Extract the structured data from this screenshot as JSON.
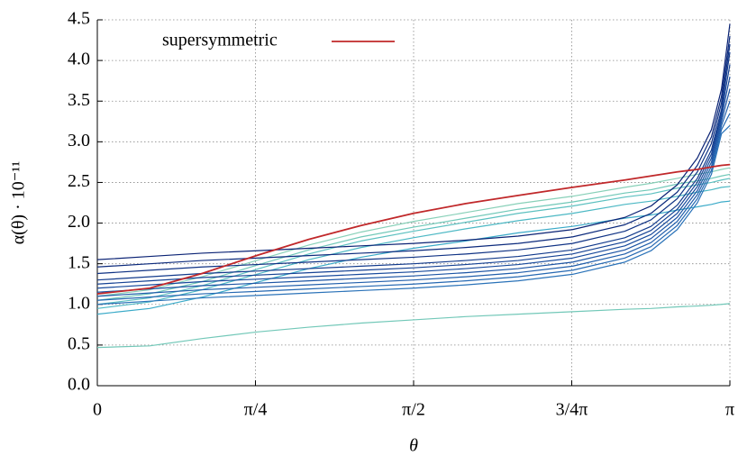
{
  "chart_data": {
    "type": "line",
    "ylabel": "α(θ) · 10⁻¹¹",
    "xlabel": "θ",
    "x": [
      0,
      0.26,
      0.52,
      0.79,
      1.05,
      1.31,
      1.57,
      1.83,
      2.09,
      2.36,
      2.62,
      2.75,
      2.88,
      2.98,
      3.05,
      3.1,
      3.1416
    ],
    "xlim": [
      0,
      3.1416
    ],
    "xticks": [
      {
        "value": 0,
        "label": "0"
      },
      {
        "value": 0.7854,
        "label": "π/4"
      },
      {
        "value": 1.5708,
        "label": "π/2"
      },
      {
        "value": 2.3562,
        "label": "3/4π"
      },
      {
        "value": 3.1416,
        "label": "π"
      }
    ],
    "ylim": [
      0,
      4.5
    ],
    "yticks": [
      {
        "value": 0,
        "label": "0.0"
      },
      0.5,
      {
        "value": 1,
        "label": "1.0"
      },
      1.5,
      {
        "value": 2,
        "label": "2.0"
      },
      2.5,
      {
        "value": 3,
        "label": "3.0"
      },
      3.5,
      {
        "value": 4,
        "label": "4.0"
      },
      4.5
    ],
    "grid": true,
    "legend": "upper left",
    "series": [
      {
        "color": "#72c8b8",
        "values": [
          0.47,
          0.49,
          0.58,
          0.66,
          0.72,
          0.77,
          0.81,
          0.85,
          0.88,
          0.91,
          0.94,
          0.95,
          0.97,
          0.98,
          0.99,
          1.0,
          1.01
        ]
      },
      {
        "color": "#3aaac8",
        "values": [
          0.88,
          0.95,
          1.09,
          1.27,
          1.44,
          1.58,
          1.69,
          1.78,
          1.88,
          1.96,
          2.06,
          2.1,
          2.16,
          2.2,
          2.23,
          2.26,
          2.27
        ]
      },
      {
        "color": "#4cb8c4",
        "values": [
          0.95,
          1.03,
          1.18,
          1.37,
          1.55,
          1.7,
          1.82,
          1.93,
          2.03,
          2.12,
          2.23,
          2.27,
          2.33,
          2.38,
          2.41,
          2.44,
          2.45
        ]
      },
      {
        "color": "#5cc0c0",
        "values": [
          1.0,
          1.08,
          1.23,
          1.43,
          1.62,
          1.78,
          1.9,
          2.01,
          2.12,
          2.21,
          2.32,
          2.36,
          2.43,
          2.47,
          2.5,
          2.53,
          2.55
        ]
      },
      {
        "color": "#70c8b8",
        "values": [
          1.05,
          1.13,
          1.28,
          1.48,
          1.67,
          1.83,
          1.95,
          2.06,
          2.17,
          2.26,
          2.37,
          2.41,
          2.48,
          2.52,
          2.55,
          2.58,
          2.6
        ]
      },
      {
        "color": "#88d0b8",
        "values": [
          1.1,
          1.18,
          1.34,
          1.54,
          1.73,
          1.89,
          2.02,
          2.13,
          2.24,
          2.33,
          2.44,
          2.49,
          2.55,
          2.6,
          2.63,
          2.66,
          2.68
        ]
      },
      {
        "color": "#2a72b8",
        "values": [
          1.0,
          1.04,
          1.08,
          1.11,
          1.14,
          1.17,
          1.2,
          1.24,
          1.29,
          1.37,
          1.52,
          1.66,
          1.92,
          2.25,
          2.6,
          3.1,
          3.2
        ]
      },
      {
        "color": "#2568b2",
        "values": [
          1.05,
          1.09,
          1.13,
          1.16,
          1.19,
          1.22,
          1.25,
          1.29,
          1.34,
          1.42,
          1.57,
          1.71,
          1.97,
          2.3,
          2.65,
          3.15,
          3.35
        ]
      },
      {
        "color": "#205eab",
        "values": [
          1.1,
          1.14,
          1.18,
          1.21,
          1.24,
          1.27,
          1.3,
          1.34,
          1.39,
          1.47,
          1.62,
          1.76,
          2.02,
          2.35,
          2.7,
          3.2,
          3.5
        ]
      },
      {
        "color": "#1c54a4",
        "values": [
          1.15,
          1.19,
          1.23,
          1.26,
          1.29,
          1.32,
          1.35,
          1.39,
          1.44,
          1.52,
          1.67,
          1.81,
          2.07,
          2.4,
          2.75,
          3.25,
          3.65
        ]
      },
      {
        "color": "#184a9c",
        "values": [
          1.2,
          1.24,
          1.28,
          1.31,
          1.34,
          1.37,
          1.4,
          1.44,
          1.49,
          1.57,
          1.72,
          1.86,
          2.12,
          2.45,
          2.8,
          3.3,
          3.8
        ]
      },
      {
        "color": "#154294",
        "values": [
          1.25,
          1.29,
          1.33,
          1.36,
          1.39,
          1.42,
          1.45,
          1.49,
          1.54,
          1.62,
          1.77,
          1.91,
          2.17,
          2.5,
          2.85,
          3.35,
          3.95
        ]
      },
      {
        "color": "#123a8c",
        "values": [
          1.3,
          1.34,
          1.38,
          1.41,
          1.44,
          1.47,
          1.5,
          1.54,
          1.59,
          1.67,
          1.82,
          1.96,
          2.22,
          2.55,
          2.9,
          3.4,
          4.1
        ]
      },
      {
        "color": "#0f3284",
        "values": [
          1.38,
          1.42,
          1.46,
          1.49,
          1.52,
          1.55,
          1.58,
          1.62,
          1.67,
          1.75,
          1.9,
          2.04,
          2.3,
          2.63,
          2.98,
          3.48,
          4.2
        ]
      },
      {
        "color": "#0c2a7c",
        "values": [
          1.46,
          1.5,
          1.54,
          1.57,
          1.6,
          1.63,
          1.66,
          1.7,
          1.75,
          1.83,
          1.98,
          2.12,
          2.38,
          2.71,
          3.06,
          3.56,
          4.3
        ]
      },
      {
        "color": "#0a2274",
        "values": [
          1.55,
          1.59,
          1.63,
          1.66,
          1.69,
          1.72,
          1.75,
          1.79,
          1.84,
          1.92,
          2.07,
          2.21,
          2.47,
          2.8,
          3.15,
          3.65,
          4.45
        ]
      },
      {
        "name": "supersymmetric",
        "color": "#c0282a",
        "values": [
          1.13,
          1.2,
          1.38,
          1.6,
          1.8,
          1.97,
          2.12,
          2.24,
          2.34,
          2.44,
          2.53,
          2.58,
          2.63,
          2.66,
          2.69,
          2.71,
          2.72
        ]
      }
    ]
  }
}
